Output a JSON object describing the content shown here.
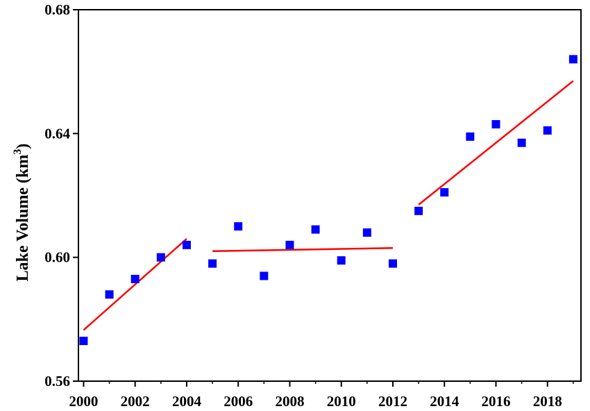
{
  "chart_data": {
    "type": "scatter",
    "title": "",
    "xlabel": "",
    "ylabel": "Lake Volume (km",
    "ylabel_superscript": "3",
    "ylabel_suffix": ")",
    "xlim": [
      1999.8,
      2019.3
    ],
    "ylim": [
      0.56,
      0.68
    ],
    "xticks": [
      2000,
      2002,
      2004,
      2006,
      2008,
      2010,
      2012,
      2014,
      2016,
      2018
    ],
    "yticks": [
      0.56,
      0.6,
      0.64,
      0.68
    ],
    "xtick_labels": [
      "2000",
      "2002",
      "2004",
      "2006",
      "2008",
      "2010",
      "2012",
      "2014",
      "2016",
      "2018"
    ],
    "ytick_labels": [
      "0.56",
      "0.60",
      "0.64",
      "0.68"
    ],
    "grid": false,
    "point_color": "#0000ff",
    "line_color": "#ff0000",
    "points": [
      {
        "x": 2000,
        "y": 0.573
      },
      {
        "x": 2001,
        "y": 0.588
      },
      {
        "x": 2002,
        "y": 0.593
      },
      {
        "x": 2003,
        "y": 0.6
      },
      {
        "x": 2004,
        "y": 0.604
      },
      {
        "x": 2005,
        "y": 0.598
      },
      {
        "x": 2006,
        "y": 0.61
      },
      {
        "x": 2007,
        "y": 0.594
      },
      {
        "x": 2008,
        "y": 0.604
      },
      {
        "x": 2009,
        "y": 0.609
      },
      {
        "x": 2010,
        "y": 0.599
      },
      {
        "x": 2011,
        "y": 0.608
      },
      {
        "x": 2012,
        "y": 0.598
      },
      {
        "x": 2013,
        "y": 0.615
      },
      {
        "x": 2014,
        "y": 0.621
      },
      {
        "x": 2015,
        "y": 0.639
      },
      {
        "x": 2016,
        "y": 0.643
      },
      {
        "x": 2017,
        "y": 0.637
      },
      {
        "x": 2018,
        "y": 0.641
      },
      {
        "x": 2019,
        "y": 0.664
      }
    ],
    "trend_lines": [
      {
        "x": [
          2000,
          2004
        ],
        "y": [
          0.5765,
          0.606
        ]
      },
      {
        "x": [
          2005,
          2012
        ],
        "y": [
          0.602,
          0.603
        ]
      },
      {
        "x": [
          2013,
          2019
        ],
        "y": [
          0.617,
          0.657
        ]
      }
    ]
  }
}
